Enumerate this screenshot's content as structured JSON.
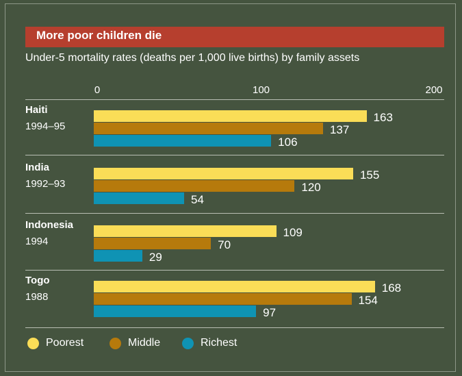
{
  "title": "More poor children die",
  "subtitle": "Under-5 mortality rates (deaths per 1,000 live births) by family assets",
  "colors": {
    "Poorest": "#fadd57",
    "Middle": "#b67a0c",
    "Richest": "#0f93b4",
    "title_bar": "#b63f2e",
    "background": "#45543f"
  },
  "chart_data": {
    "type": "bar",
    "orientation": "horizontal",
    "title": "More poor children die",
    "subtitle": "Under-5 mortality rates (deaths per 1,000 live births) by family assets",
    "xlim": [
      0,
      200
    ],
    "ticks": [
      "0",
      "100",
      "200"
    ],
    "legend_position": "bottom",
    "categories": [
      {
        "country": "Haiti",
        "year": "1994–95"
      },
      {
        "country": "India",
        "year": "1992–93"
      },
      {
        "country": "Indonesia",
        "year": "1994"
      },
      {
        "country": "Togo",
        "year": "1988"
      }
    ],
    "series": [
      {
        "name": "Poorest",
        "values": [
          163,
          155,
          109,
          168
        ]
      },
      {
        "name": "Middle",
        "values": [
          137,
          120,
          70,
          154
        ]
      },
      {
        "name": "Richest",
        "values": [
          106,
          54,
          29,
          97
        ]
      }
    ]
  }
}
